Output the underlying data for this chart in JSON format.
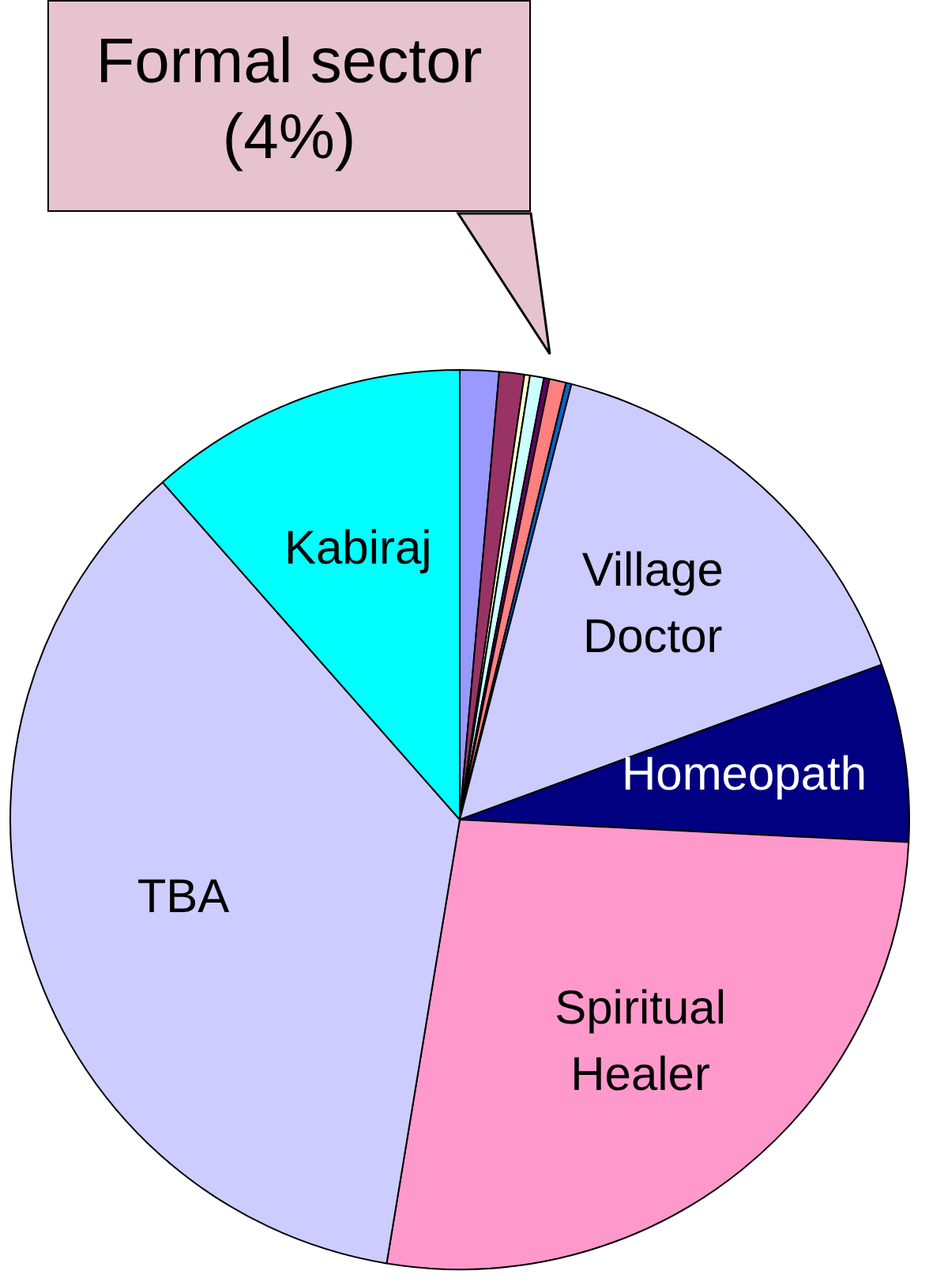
{
  "chart_data": {
    "type": "pie",
    "categories": [
      null,
      null,
      null,
      null,
      null,
      null,
      null,
      "Village Doctor",
      "Homeopath",
      "Spiritual Healer",
      "TBA",
      "Kabiraj"
    ],
    "values": [
      1.4,
      0.9,
      0.2,
      0.5,
      0.2,
      0.6,
      0.2,
      15.4,
      6.4,
      26.8,
      35.9,
      11.5
    ],
    "colors": [
      "#9999ff",
      "#993366",
      "#ffffcc",
      "#ccffff",
      "#660066",
      "#ff8080",
      "#0066cc",
      "#ccccff",
      "#000080",
      "#ff99cc",
      "#ccccff",
      "#00ffff"
    ],
    "annotations": [
      "Formal sector (4%)"
    ],
    "legend": false
  }
}
